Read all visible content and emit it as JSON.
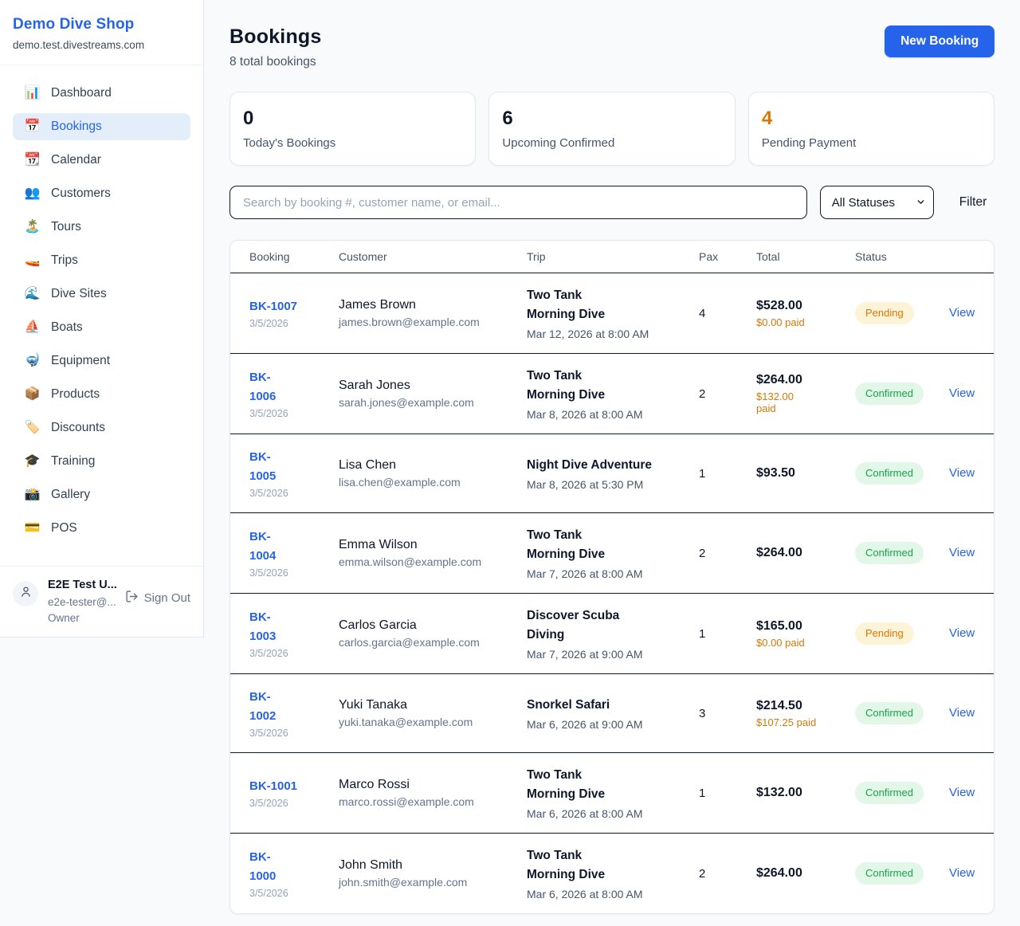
{
  "sidebar": {
    "shop_name": "Demo Dive Shop",
    "shop_domain": "demo.test.divestreams.com",
    "items": [
      {
        "label": "Dashboard",
        "icon": "bar-chart-icon",
        "glyph": "📊",
        "active": false
      },
      {
        "label": "Bookings",
        "icon": "calendar-icon",
        "glyph": "📅",
        "active": true
      },
      {
        "label": "Calendar",
        "icon": "tear-off-calendar-icon",
        "glyph": "📆",
        "active": false
      },
      {
        "label": "Customers",
        "icon": "people-icon",
        "glyph": "👥",
        "active": false
      },
      {
        "label": "Tours",
        "icon": "island-icon",
        "glyph": "🏝️",
        "active": false
      },
      {
        "label": "Trips",
        "icon": "speedboat-icon",
        "glyph": "🚤",
        "active": false
      },
      {
        "label": "Dive Sites",
        "icon": "wave-icon",
        "glyph": "🌊",
        "active": false
      },
      {
        "label": "Boats",
        "icon": "sailboat-icon",
        "glyph": "⛵",
        "active": false
      },
      {
        "label": "Equipment",
        "icon": "diving-mask-icon",
        "glyph": "🤿",
        "active": false
      },
      {
        "label": "Products",
        "icon": "package-icon",
        "glyph": "📦",
        "active": false
      },
      {
        "label": "Discounts",
        "icon": "tag-icon",
        "glyph": "🏷️",
        "active": false
      },
      {
        "label": "Training",
        "icon": "graduation-cap-icon",
        "glyph": "🎓",
        "active": false
      },
      {
        "label": "Gallery",
        "icon": "camera-icon",
        "glyph": "📸",
        "active": false
      },
      {
        "label": "POS",
        "icon": "credit-card-icon",
        "glyph": "💳",
        "active": false
      }
    ],
    "user": {
      "name": "E2E Test U...",
      "email": "e2e-tester@...",
      "role": "Owner",
      "sign_out_label": "Sign Out"
    }
  },
  "header": {
    "title": "Bookings",
    "subtitle": "8 total bookings",
    "new_booking_label": "New Booking"
  },
  "stats": [
    {
      "value": "0",
      "label": "Today's Bookings",
      "color": "#0f172a"
    },
    {
      "value": "6",
      "label": "Upcoming Confirmed",
      "color": "#0f172a"
    },
    {
      "value": "4",
      "label": "Pending Payment",
      "color": "#d97706"
    }
  ],
  "filters": {
    "search_placeholder": "Search by booking #, customer name, or email...",
    "status_selected": "All Statuses",
    "filter_label": "Filter"
  },
  "table": {
    "columns": [
      "Booking",
      "Customer",
      "Trip",
      "Pax",
      "Total",
      "Status",
      ""
    ],
    "rows": [
      {
        "id": "BK-1007",
        "date": "3/5/2026",
        "customer": "James Brown",
        "email": "james.brown@example.com",
        "trip": "Two Tank Morning Dive",
        "trip_time": "Mar 12, 2026 at 8:00 AM",
        "pax": "4",
        "total": "$528.00",
        "paid": "$0.00 paid",
        "status": "Pending",
        "action": "View"
      },
      {
        "id": "BK-1006",
        "date": "3/5/2026",
        "customer": "Sarah Jones",
        "email": "sarah.jones@example.com",
        "trip": "Two Tank Morning Dive",
        "trip_time": "Mar 8, 2026 at 8:00 AM",
        "pax": "2",
        "total": "$264.00",
        "paid": "$132.00 paid",
        "status": "Confirmed",
        "action": "View"
      },
      {
        "id": "BK-1005",
        "date": "3/5/2026",
        "customer": "Lisa Chen",
        "email": "lisa.chen@example.com",
        "trip": "Night Dive Adventure",
        "trip_time": "Mar 8, 2026 at 5:30 PM",
        "pax": "1",
        "total": "$93.50",
        "paid": "",
        "status": "Confirmed",
        "action": "View"
      },
      {
        "id": "BK-1004",
        "date": "3/5/2026",
        "customer": "Emma Wilson",
        "email": "emma.wilson@example.com",
        "trip": "Two Tank Morning Dive",
        "trip_time": "Mar 7, 2026 at 8:00 AM",
        "pax": "2",
        "total": "$264.00",
        "paid": "",
        "status": "Confirmed",
        "action": "View"
      },
      {
        "id": "BK-1003",
        "date": "3/5/2026",
        "customer": "Carlos Garcia",
        "email": "carlos.garcia@example.com",
        "trip": "Discover Scuba Diving",
        "trip_time": "Mar 7, 2026 at 9:00 AM",
        "pax": "1",
        "total": "$165.00",
        "paid": "$0.00 paid",
        "status": "Pending",
        "action": "View"
      },
      {
        "id": "BK-1002",
        "date": "3/5/2026",
        "customer": "Yuki Tanaka",
        "email": "yuki.tanaka@example.com",
        "trip": "Snorkel Safari",
        "trip_time": "Mar 6, 2026 at 9:00 AM",
        "pax": "3",
        "total": "$214.50",
        "paid": "$107.25 paid",
        "status": "Confirmed",
        "action": "View"
      },
      {
        "id": "BK-1001",
        "date": "3/5/2026",
        "customer": "Marco Rossi",
        "email": "marco.rossi@example.com",
        "trip": "Two Tank Morning Dive",
        "trip_time": "Mar 6, 2026 at 8:00 AM",
        "pax": "1",
        "total": "$132.00",
        "paid": "",
        "status": "Confirmed",
        "action": "View"
      },
      {
        "id": "BK-1000",
        "date": "3/5/2026",
        "customer": "John Smith",
        "email": "john.smith@example.com",
        "trip": "Two Tank Morning Dive",
        "trip_time": "Mar 6, 2026 at 8:00 AM",
        "pax": "2",
        "total": "$264.00",
        "paid": "",
        "status": "Confirmed",
        "action": "View"
      }
    ]
  },
  "colors": {
    "primary": "#2563eb",
    "page_bg": "#f8fafc",
    "border_light": "#e2e8f0",
    "border_dark": "#0f172a",
    "pending_bg": "#fdf4d8",
    "pending_text": "#d97706",
    "confirmed_bg": "#e3f7e9",
    "confirmed_text": "#16a34a",
    "paid_orange": "#d97706"
  }
}
